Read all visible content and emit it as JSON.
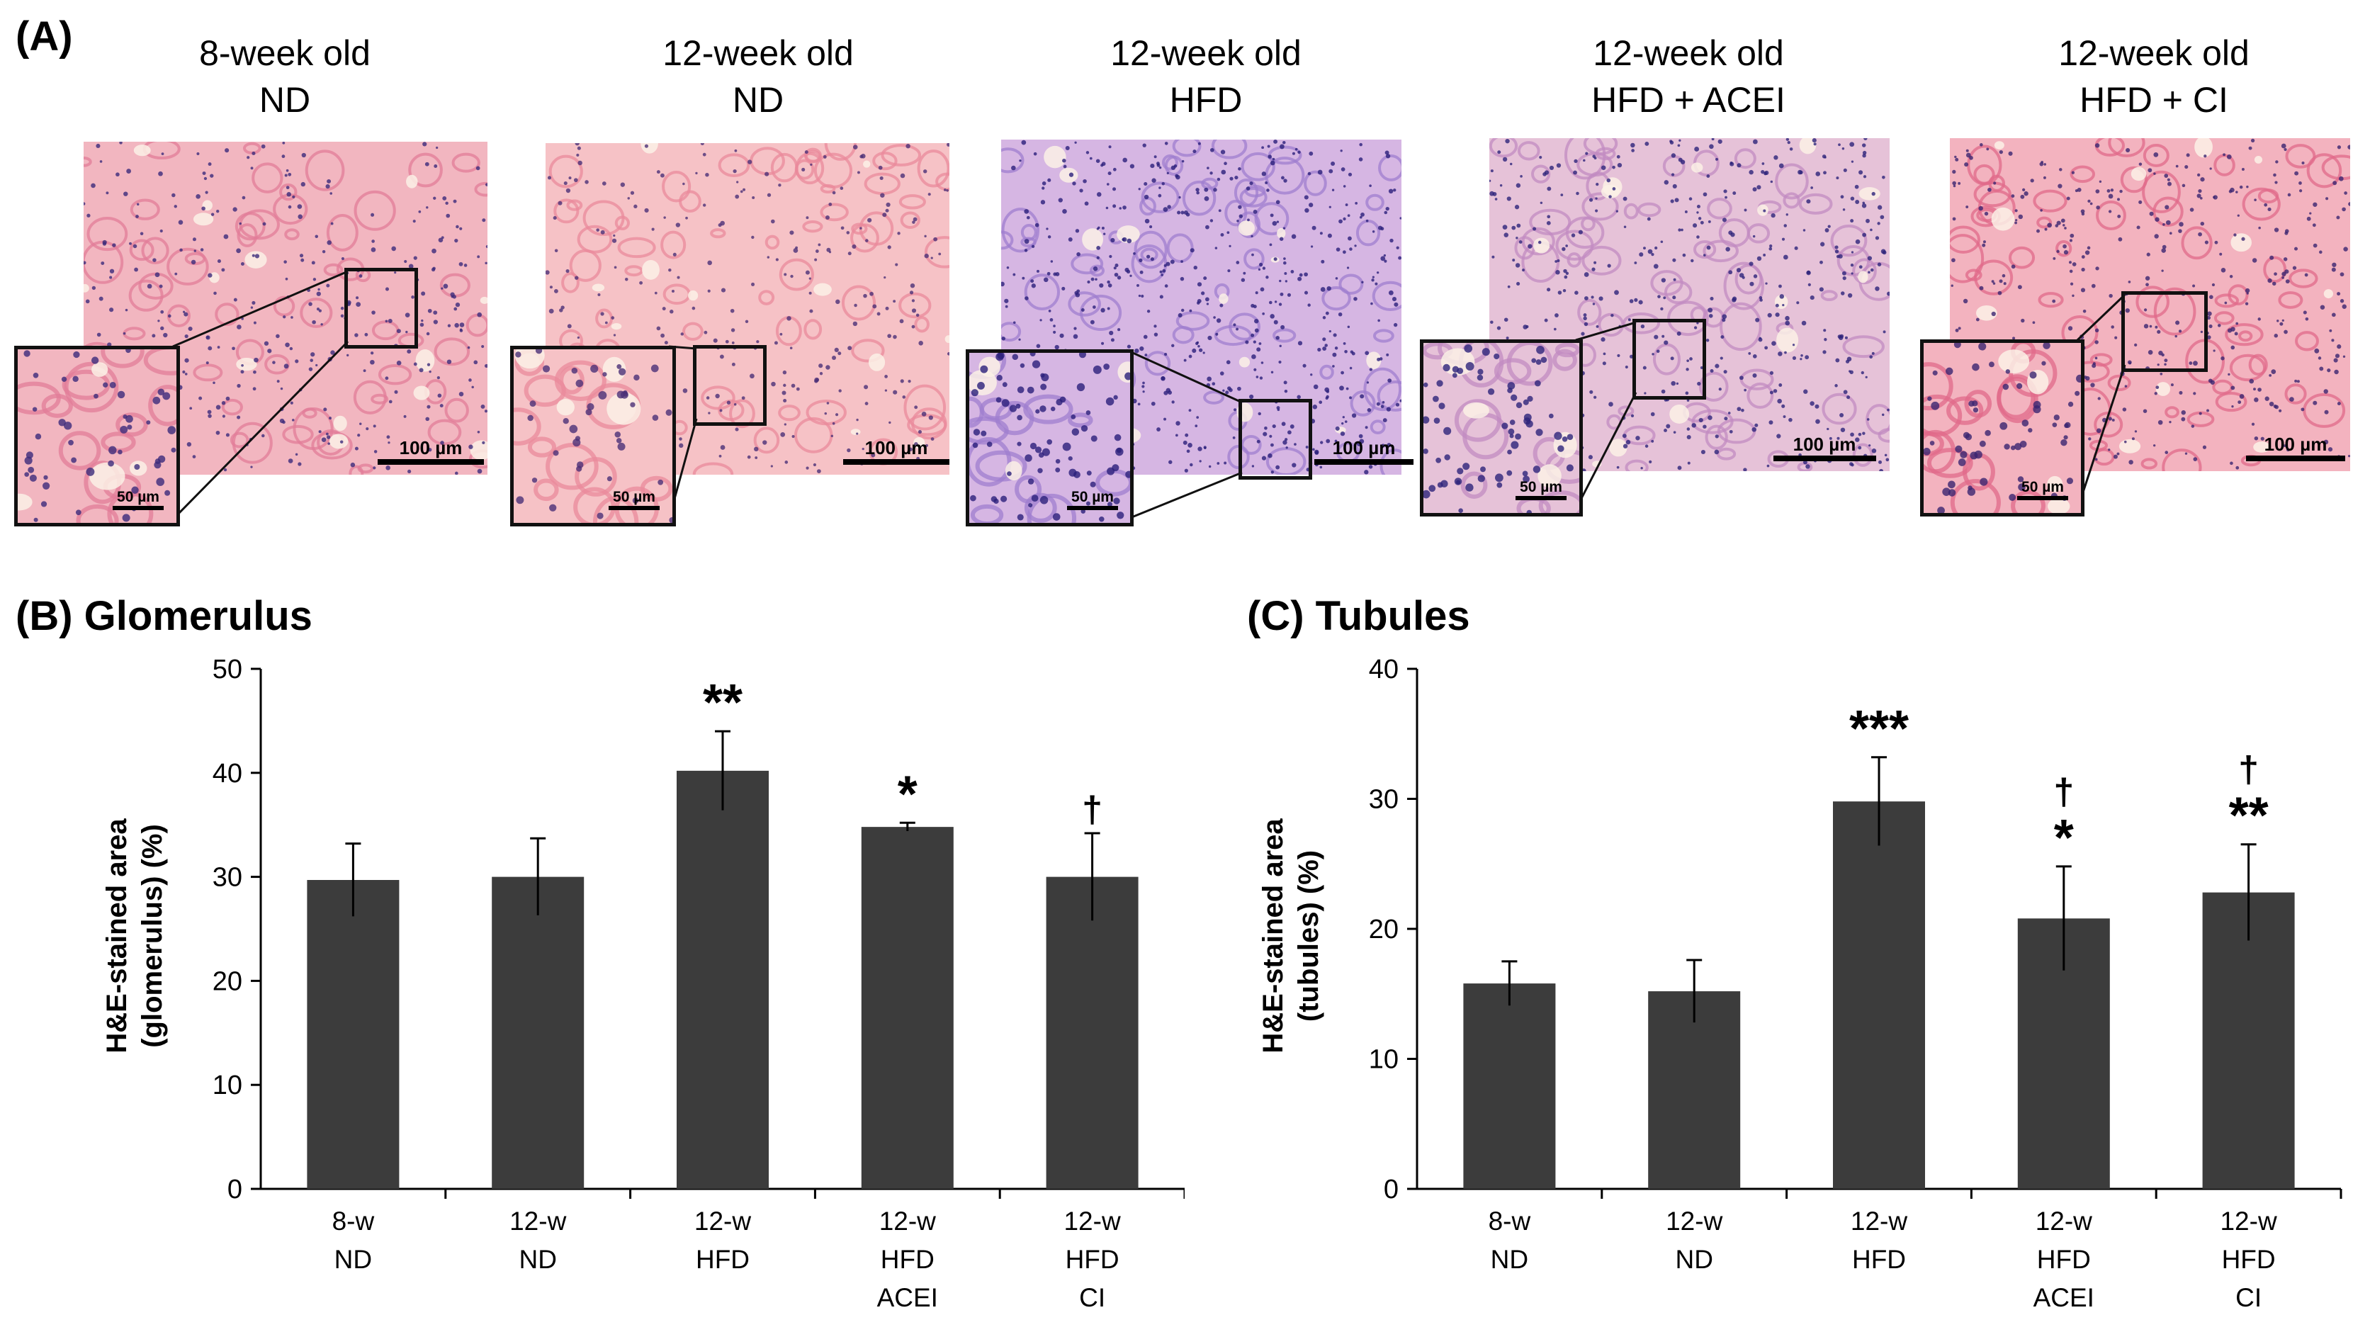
{
  "panel_a": {
    "label": "(A)",
    "scale_main": "100 µm",
    "scale_inset": "50 µm",
    "groups": [
      {
        "line1": "8-week old",
        "line2": "ND",
        "tissue": {
          "base": "#f2b6c0",
          "stroma": "#e27c98",
          "nuclei": "#3b2a7a",
          "density": 0.55
        }
      },
      {
        "line1": "12-week old",
        "line2": "ND",
        "tissue": {
          "base": "#f6c2c6",
          "stroma": "#e9899b",
          "nuclei": "#4b2f77",
          "density": 0.45
        }
      },
      {
        "line1": "12-week old",
        "line2": "HFD",
        "tissue": {
          "base": "#d6b6e3",
          "stroma": "#9f7ecf",
          "nuclei": "#2a1f7a",
          "density": 0.9
        }
      },
      {
        "line1": "12-week old",
        "line2": "HFD + ACEI",
        "tissue": {
          "base": "#e6c2d8",
          "stroma": "#c28bc2",
          "nuclei": "#2d237a",
          "density": 0.75
        }
      },
      {
        "line1": "12-week old",
        "line2": "HFD + CI",
        "tissue": {
          "base": "#f3b3bf",
          "stroma": "#e06a89",
          "nuclei": "#3a2470",
          "density": 0.65
        }
      }
    ]
  },
  "chart_data": [
    {
      "type": "bar",
      "title": "(B) Glomerulus",
      "ylabel_line1": "H&E-stained area",
      "ylabel_line2": "(glomerulus) (%)",
      "ylim": [
        0,
        50
      ],
      "yticks": [
        0,
        10,
        20,
        30,
        40,
        50
      ],
      "categories": [
        [
          "8-w",
          "ND"
        ],
        [
          "12-w",
          "ND"
        ],
        [
          "12-w",
          "HFD"
        ],
        [
          "12-w",
          "HFD",
          "ACEI"
        ],
        [
          "12-w",
          "HFD",
          "CI"
        ]
      ],
      "values": [
        29.7,
        30.0,
        40.2,
        34.8,
        30.0
      ],
      "errors": [
        3.5,
        3.7,
        3.8,
        0.4,
        4.2
      ],
      "annotations": [
        [],
        [],
        [
          "**"
        ],
        [
          "*"
        ],
        [
          "†"
        ]
      ],
      "bar_color": "#3c3c3c"
    },
    {
      "type": "bar",
      "title": "(C) Tubules",
      "ylabel_line1": "H&E-stained area",
      "ylabel_line2": "(tubules) (%)",
      "ylim": [
        0,
        40
      ],
      "yticks": [
        0,
        10,
        20,
        30,
        40
      ],
      "categories": [
        [
          "8-w",
          "ND"
        ],
        [
          "12-w",
          "ND"
        ],
        [
          "12-w",
          "HFD"
        ],
        [
          "12-w",
          "HFD",
          "ACEI"
        ],
        [
          "12-w",
          "HFD",
          "CI"
        ]
      ],
      "values": [
        15.8,
        15.2,
        29.8,
        20.8,
        22.8
      ],
      "errors": [
        1.7,
        2.4,
        3.4,
        4.0,
        3.7
      ],
      "annotations": [
        [],
        [],
        [
          "***"
        ],
        [
          "†",
          "*"
        ],
        [
          "†",
          "**"
        ]
      ],
      "bar_color": "#3c3c3c"
    }
  ]
}
